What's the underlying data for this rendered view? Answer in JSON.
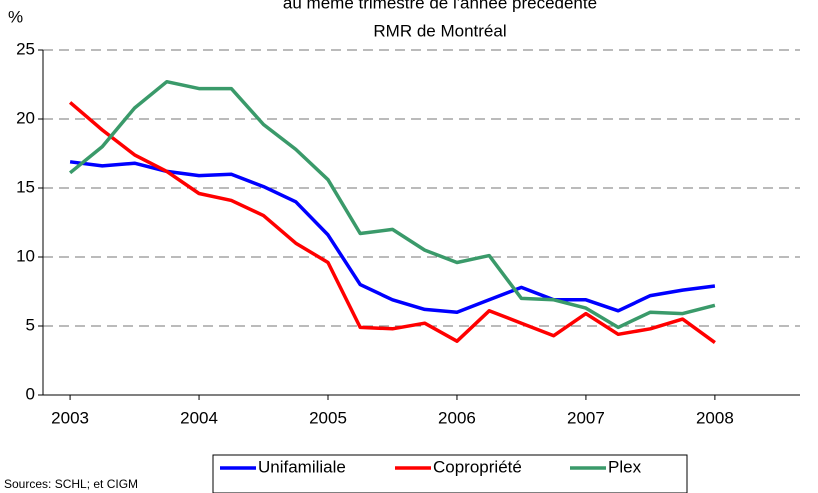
{
  "chart_data": {
    "type": "line",
    "title": "au même trimestre de l'année précédente",
    "subtitle": "RMR de Montréal",
    "y_label": "%",
    "source": "Sources: SCHL; et CIGM",
    "x": [
      2003,
      2003.25,
      2003.5,
      2003.75,
      2004,
      2004.25,
      2004.5,
      2004.75,
      2005,
      2005.25,
      2005.5,
      2005.75,
      2006,
      2006.25,
      2006.5,
      2006.75,
      2007,
      2007.25,
      2007.5,
      2007.75,
      2008
    ],
    "series": [
      {
        "name": "Unifamiliale",
        "color": "#0000ff",
        "values": [
          16.9,
          16.6,
          16.8,
          16.2,
          15.9,
          16.0,
          15.1,
          14.0,
          11.6,
          8.0,
          6.9,
          6.2,
          6.0,
          6.9,
          7.8,
          6.9,
          6.9,
          6.1,
          7.2,
          7.6,
          7.9
        ]
      },
      {
        "name": "Copropriété",
        "color": "#ff0000",
        "values": [
          21.2,
          19.2,
          17.4,
          16.2,
          14.6,
          14.1,
          13.0,
          11.0,
          9.6,
          4.9,
          4.8,
          5.2,
          3.9,
          6.1,
          5.2,
          4.3,
          5.9,
          4.4,
          4.8,
          5.5,
          3.8
        ]
      },
      {
        "name": "Plex",
        "color": "#3a9a6a",
        "values": [
          16.1,
          18.0,
          20.8,
          22.7,
          22.2,
          22.2,
          19.6,
          17.8,
          15.6,
          11.7,
          12.0,
          10.5,
          9.6,
          10.1,
          7.0,
          6.9,
          6.3,
          4.9,
          6.0,
          5.9,
          6.5
        ]
      }
    ],
    "xlim": [
      2002.79,
      2008.66
    ],
    "xticks": [
      2003,
      2004,
      2005,
      2006,
      2007,
      2008
    ],
    "ylim": [
      0,
      25
    ],
    "yticks": [
      0,
      5,
      10,
      15,
      20,
      25
    ],
    "grid": true
  }
}
